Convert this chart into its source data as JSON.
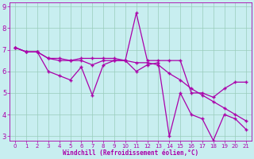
{
  "xlabel": "Windchill (Refroidissement éolien,°C)",
  "x": [
    0,
    1,
    2,
    3,
    4,
    5,
    6,
    7,
    8,
    9,
    10,
    11,
    12,
    13,
    14,
    15,
    16,
    17,
    18,
    19,
    20,
    21
  ],
  "y_top": [
    7.1,
    6.9,
    6.9,
    6.6,
    6.6,
    6.5,
    6.6,
    6.6,
    6.6,
    6.6,
    6.5,
    8.7,
    6.5,
    6.5,
    6.5,
    6.5,
    5.0,
    5.0,
    4.8,
    5.2,
    5.5,
    5.5
  ],
  "y_mid": [
    7.1,
    6.9,
    6.9,
    6.6,
    6.5,
    6.5,
    6.5,
    6.3,
    6.5,
    6.5,
    6.5,
    6.4,
    6.4,
    6.3,
    5.9,
    5.6,
    5.2,
    4.9,
    4.6,
    4.3,
    4.0,
    3.7
  ],
  "y_bot": [
    7.1,
    6.9,
    6.9,
    6.0,
    5.8,
    5.6,
    6.2,
    4.9,
    6.3,
    6.5,
    6.5,
    6.0,
    6.3,
    6.4,
    3.0,
    5.0,
    4.0,
    3.8,
    2.8,
    4.0,
    3.8,
    3.3
  ],
  "line_color": "#aa00aa",
  "bg_color": "#c8eef0",
  "grid_color": "#99ccbb",
  "xlim": [
    -0.5,
    21.5
  ],
  "ylim": [
    2.8,
    9.2
  ],
  "yticks": [
    3,
    4,
    5,
    6,
    7,
    8,
    9
  ],
  "xticks": [
    0,
    1,
    2,
    3,
    4,
    5,
    6,
    7,
    8,
    9,
    10,
    11,
    12,
    13,
    14,
    15,
    16,
    17,
    18,
    19,
    20,
    21
  ]
}
